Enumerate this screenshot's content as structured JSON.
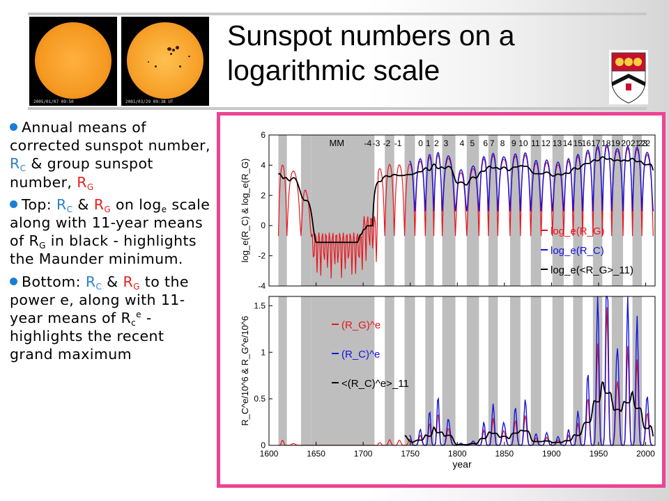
{
  "title_line1": "Sunspot numbers on a",
  "title_line2": "logarithmic scale",
  "images": [
    {
      "stamp": "2005/01/07 09:50"
    },
    {
      "stamp": "2001/03/29 09:38 UT"
    }
  ],
  "bullets": [
    {
      "prefix": "Annual means of corrected sunspot number, ",
      "rc": "R",
      "rc_sub": "C",
      "mid": " & group sunspot number, ",
      "rg": "R",
      "rg_sub": "G",
      "suffix": ""
    },
    {
      "prefix": "Top: ",
      "rc": "R",
      "rc_sub": "C",
      "mid": " & ",
      "rg": "R",
      "rg_sub": "G",
      "text2": " on log",
      "text2_sub": "e",
      "text3": " scale along with 11-year means of R",
      "text3_sub": "G",
      "text4": " in black - highlights the Maunder minimum."
    },
    {
      "prefix": "Bottom: ",
      "rc": "R",
      "rc_sub": "C",
      "mid": " & ",
      "rg": "R",
      "rg_sub": "G",
      "text2": " to the power e, along with 11-year means of R",
      "text2_sub": "c",
      "text2_sup": "e",
      "text3": " - highlights the recent grand maximum"
    }
  ],
  "colors": {
    "red": "#e8141c",
    "blue": "#1414e0",
    "black": "#000000",
    "frame": "#ef4393",
    "band": "#bebebe"
  },
  "chart_data": [
    {
      "type": "line",
      "panel": "top",
      "xlabel": "",
      "ylabel": "log_e(R_C) & log_e(R_G)",
      "xlim": [
        1600,
        2010
      ],
      "ylim": [
        -4,
        6
      ],
      "yticks": [
        "-4",
        "-2",
        "0",
        "2",
        "4",
        "6"
      ],
      "annotation": "MM",
      "cycle_labels": [
        "-4",
        "-3",
        "-2",
        "-1",
        "0",
        "1",
        "2",
        "3",
        "4",
        "5",
        "6",
        "7",
        "8",
        "9",
        "10",
        "11",
        "12",
        "13",
        "14",
        "15",
        "16",
        "17",
        "18",
        "19",
        "20",
        "21",
        "22",
        "23"
      ],
      "legend": [
        {
          "label": "log_e(R_G)",
          "color": "#e8141c"
        },
        {
          "label": "log_e(R_C)",
          "color": "#1414e0"
        },
        {
          "label": "log_e(<R_G>_11)",
          "color": "#000000"
        }
      ]
    },
    {
      "type": "line",
      "panel": "bottom",
      "xlabel": "year",
      "ylabel": "R_C^e/10^6 & R_G^e/10^6",
      "xlim": [
        1600,
        2010
      ],
      "ylim": [
        0,
        1.6
      ],
      "xticks": [
        "1600",
        "1650",
        "1700",
        "1750",
        "1800",
        "1850",
        "1900",
        "1950",
        "2000"
      ],
      "yticks": [
        "0",
        "0.5",
        "1",
        "1.5"
      ],
      "legend": [
        {
          "label": "(R_G)^e",
          "color": "#e8141c"
        },
        {
          "label": "(R_C)^e",
          "color": "#1414e0"
        },
        {
          "label": "<(R_C)^e>_11",
          "color": "#000000"
        }
      ]
    }
  ]
}
